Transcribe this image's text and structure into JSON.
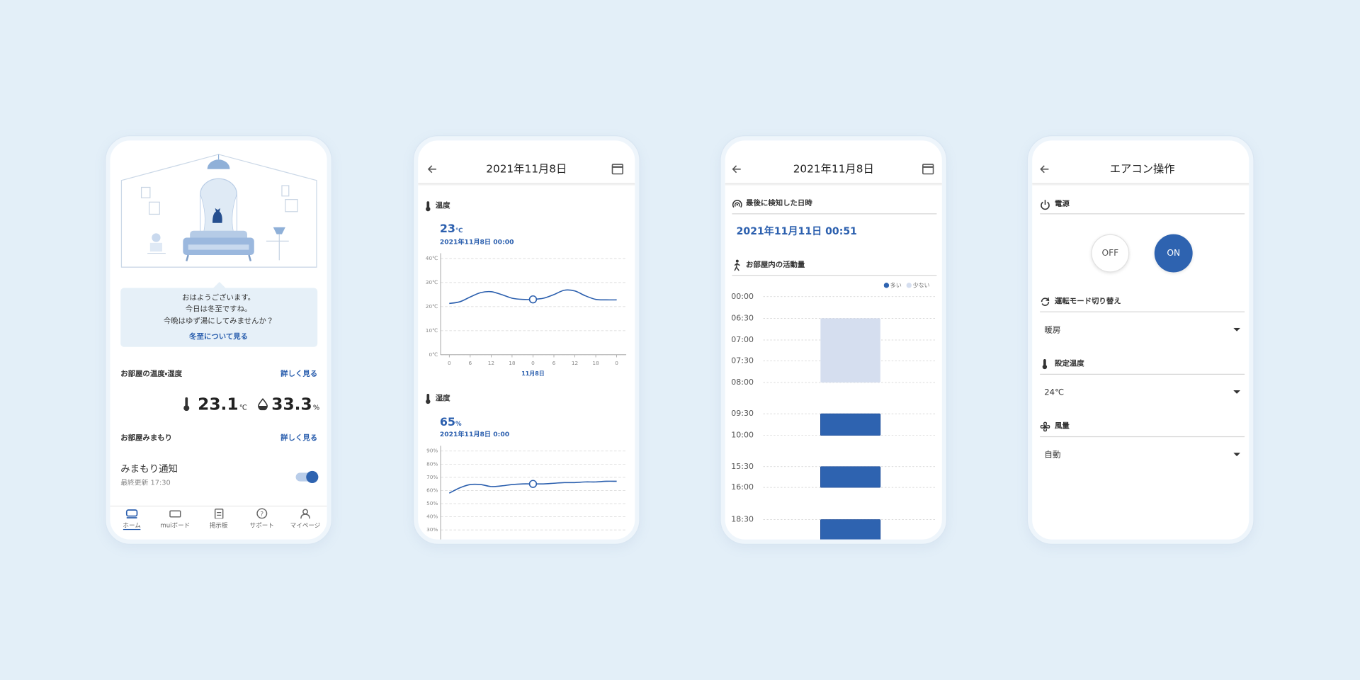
{
  "home": {
    "greeting": [
      "おはようございます。",
      "今日は冬至ですね。",
      "今晩はゆず湯にしてみませんか？"
    ],
    "greeting_link": "冬至について見る",
    "climate": {
      "title": "お部屋の温度・湿度",
      "more": "詳しく見る",
      "temperature": 23.1,
      "temperature_unit": "℃",
      "humidity": 33.3,
      "humidity_unit": "%"
    },
    "watch": {
      "title": "お部屋みまもり",
      "more": "詳しく見る",
      "item": "みまもり通知",
      "updated": "最終更新 17:30"
    },
    "nav": [
      "ホーム",
      "muiボード",
      "掲示板",
      "サポート",
      "マイページ"
    ]
  },
  "history": {
    "date": "2021年11月8日",
    "charts": [
      {
        "type": "line",
        "title": "温度",
        "current": 23,
        "unit": "℃",
        "timestamp": "2021年11月8日 00:00",
        "x": [
          0,
          3,
          6,
          9,
          12,
          15,
          18,
          21,
          24,
          27,
          30,
          33,
          36,
          39,
          42,
          45,
          48
        ],
        "values": [
          21.3,
          22,
          24,
          25.8,
          26.2,
          25,
          23.5,
          23,
          23,
          23.5,
          25,
          26.8,
          26.5,
          24.5,
          23,
          22.8,
          22.8
        ],
        "marker_x": 24,
        "xlim": [
          0,
          48
        ],
        "xticks": [
          0,
          6,
          12,
          18,
          {
            "value": 24,
            "label": "0"
          },
          {
            "value": 30,
            "label": "6"
          },
          {
            "value": 36,
            "label": "12"
          },
          {
            "value": 42,
            "label": "18"
          },
          {
            "value": 48,
            "label": "0"
          }
        ],
        "xlabel": "11月8日",
        "ylim": [
          0,
          40
        ],
        "yticks": [
          {
            "value": 40,
            "label": "40℃"
          },
          {
            "value": 30,
            "label": "30℃"
          },
          {
            "value": 20,
            "label": "20℃"
          },
          {
            "value": 10,
            "label": "10℃"
          },
          {
            "value": 0,
            "label": "0℃"
          }
        ],
        "color": "#2b5fae",
        "grid": true
      },
      {
        "type": "line",
        "title": "湿度",
        "current": 65,
        "unit": "%",
        "timestamp": "2021年11月8日 0:00",
        "x": [
          0,
          3,
          6,
          9,
          12,
          15,
          18,
          21,
          24,
          27,
          30,
          33,
          36,
          39,
          42,
          45,
          48
        ],
        "values": [
          58,
          62,
          64.5,
          64.5,
          63,
          63.5,
          64.5,
          65,
          65,
          65,
          65.5,
          66,
          66,
          66.5,
          66.5,
          67,
          67
        ],
        "marker_x": 24,
        "xlim": [
          0,
          48
        ],
        "ylim": [
          30,
          90
        ],
        "yticks": [
          {
            "value": 90,
            "label": "90%"
          },
          {
            "value": 80,
            "label": "80%"
          },
          {
            "value": 70,
            "label": "70%"
          },
          {
            "value": 60,
            "label": "60%"
          },
          {
            "value": 50,
            "label": "50%"
          },
          {
            "value": 40,
            "label": "40%"
          },
          {
            "value": 30,
            "label": "30%"
          }
        ],
        "color": "#2b5fae",
        "grid": true
      }
    ]
  },
  "activity": {
    "date": "2021年11月8日",
    "last_detected_title": "最後に検知した日時",
    "last_detected": "2021年11月11日 00:51",
    "activity_title": "お部屋内の活動量",
    "series": [
      {
        "name": "多い",
        "color": "#2e63b0"
      },
      {
        "name": "少ない",
        "color": "#d5deef"
      }
    ],
    "times": [
      "00:00",
      "06:30",
      "07:00",
      "07:30",
      "08:00",
      "09:30",
      "10:00",
      "15:30",
      "16:00",
      "18:30"
    ],
    "bars": [
      {
        "start": "06:30",
        "end": "08:00",
        "level": "少ない"
      },
      {
        "start": "09:30",
        "end": "10:00",
        "level": "多い"
      },
      {
        "start": "15:30",
        "end": "16:00",
        "level": "多い"
      },
      {
        "start": "18:30",
        "end": null,
        "level": "多い"
      }
    ]
  },
  "aircon": {
    "title": "エアコン操作",
    "power": {
      "title": "電源",
      "options": [
        "OFF",
        "ON"
      ],
      "selected": "ON"
    },
    "mode": {
      "title": "運転モード切り替え",
      "value": "暖房"
    },
    "temperature": {
      "title": "設定温度",
      "value": "24℃"
    },
    "fan": {
      "title": "風量",
      "value": "自動"
    }
  }
}
